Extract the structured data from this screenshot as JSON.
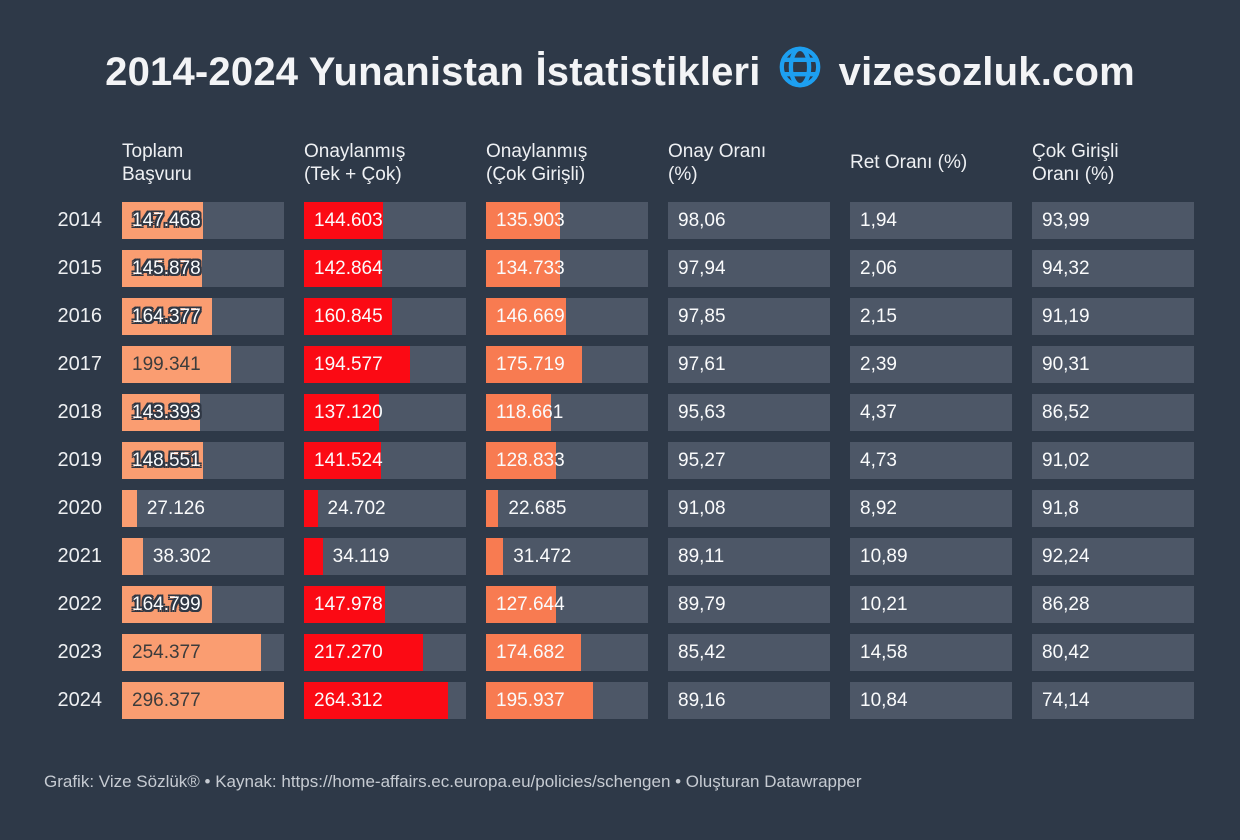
{
  "colors": {
    "background": "#2e3948",
    "cell_gray": "#4d5767",
    "bar_total_orange": "#fa9d71",
    "bar_approved_red": "#fb0a14",
    "bar_multi_coral": "#f87b51",
    "globe_blue": "#1d9ff0",
    "text_white": "#fafbfc",
    "text_dark_on_bar": "#3c3c3c",
    "footer_gray": "#c6cbd2"
  },
  "header": {
    "title_left": "2014-2024 Yunanistan İstatistikleri",
    "title_right": "vizesozluk.com"
  },
  "table": {
    "columns": [
      {
        "label": "Toplam\nBaşvuru"
      },
      {
        "label": "Onaylanmış\n(Tek + Çok)"
      },
      {
        "label": "Onaylanmış\n(Çok Girişli)"
      },
      {
        "label": "Onay Oranı\n(%)"
      },
      {
        "label": "Ret Oranı (%)"
      },
      {
        "label": "Çok Girişli\nOranı (%)"
      }
    ],
    "rows": [
      {
        "year": "2014",
        "total": {
          "text": "147.468",
          "value": 147468
        },
        "approved": {
          "text": "144.603",
          "value": 144603
        },
        "multi": {
          "text": "135.903",
          "value": 135903
        },
        "approval_rate": "98,06",
        "rejection_rate": "1,94",
        "multi_rate": "93,99"
      },
      {
        "year": "2015",
        "total": {
          "text": "145.878",
          "value": 145878
        },
        "approved": {
          "text": "142.864",
          "value": 142864
        },
        "multi": {
          "text": "134.733",
          "value": 134733
        },
        "approval_rate": "97,94",
        "rejection_rate": "2,06",
        "multi_rate": "94,32"
      },
      {
        "year": "2016",
        "total": {
          "text": "164.377",
          "value": 164377
        },
        "approved": {
          "text": "160.845",
          "value": 160845
        },
        "multi": {
          "text": "146.669",
          "value": 146669
        },
        "approval_rate": "97,85",
        "rejection_rate": "2,15",
        "multi_rate": "91,19"
      },
      {
        "year": "2017",
        "total": {
          "text": "199.341",
          "value": 199341
        },
        "approved": {
          "text": "194.577",
          "value": 194577
        },
        "multi": {
          "text": "175.719",
          "value": 175719
        },
        "approval_rate": "97,61",
        "rejection_rate": "2,39",
        "multi_rate": "90,31"
      },
      {
        "year": "2018",
        "total": {
          "text": "143.393",
          "value": 143393
        },
        "approved": {
          "text": "137.120",
          "value": 137120
        },
        "multi": {
          "text": "118.661",
          "value": 118661
        },
        "approval_rate": "95,63",
        "rejection_rate": "4,37",
        "multi_rate": "86,52"
      },
      {
        "year": "2019",
        "total": {
          "text": "148.551",
          "value": 148551
        },
        "approved": {
          "text": "141.524",
          "value": 141524
        },
        "multi": {
          "text": "128.833",
          "value": 128833
        },
        "approval_rate": "95,27",
        "rejection_rate": "4,73",
        "multi_rate": "91,02"
      },
      {
        "year": "2020",
        "total": {
          "text": "27.126",
          "value": 27126
        },
        "approved": {
          "text": "24.702",
          "value": 24702
        },
        "multi": {
          "text": "22.685",
          "value": 22685
        },
        "approval_rate": "91,08",
        "rejection_rate": "8,92",
        "multi_rate": "91,8"
      },
      {
        "year": "2021",
        "total": {
          "text": "38.302",
          "value": 38302
        },
        "approved": {
          "text": "34.119",
          "value": 34119
        },
        "multi": {
          "text": "31.472",
          "value": 31472
        },
        "approval_rate": "89,11",
        "rejection_rate": "10,89",
        "multi_rate": "92,24"
      },
      {
        "year": "2022",
        "total": {
          "text": "164.799",
          "value": 164799
        },
        "approved": {
          "text": "147.978",
          "value": 147978
        },
        "multi": {
          "text": "127.644",
          "value": 127644
        },
        "approval_rate": "89,79",
        "rejection_rate": "10,21",
        "multi_rate": "86,28"
      },
      {
        "year": "2023",
        "total": {
          "text": "254.377",
          "value": 254377
        },
        "approved": {
          "text": "217.270",
          "value": 217270
        },
        "multi": {
          "text": "174.682",
          "value": 174682
        },
        "approval_rate": "85,42",
        "rejection_rate": "14,58",
        "multi_rate": "80,42"
      },
      {
        "year": "2024",
        "total": {
          "text": "296.377",
          "value": 296377
        },
        "approved": {
          "text": "264.312",
          "value": 264312
        },
        "multi": {
          "text": "195.937",
          "value": 195937
        },
        "approval_rate": "89,16",
        "rejection_rate": "10,84",
        "multi_rate": "74,14"
      }
    ]
  },
  "footer": {
    "credit": "Grafik: Vize Sözlük® • Kaynak: https://home-affairs.ec.europa.eu/policies/schengen • Oluşturan Datawrapper"
  },
  "chart_data": {
    "type": "table",
    "title": "2014-2024 Yunanistan İstatistikleri vizesozluk.com",
    "categories": [
      2014,
      2015,
      2016,
      2017,
      2018,
      2019,
      2020,
      2021,
      2022,
      2023,
      2024
    ],
    "series": [
      {
        "name": "Toplam Başvuru",
        "values": [
          147468,
          145878,
          164377,
          199341,
          143393,
          148551,
          27126,
          38302,
          164799,
          254377,
          296377
        ]
      },
      {
        "name": "Onaylanmış (Tek + Çok)",
        "values": [
          144603,
          142864,
          160845,
          194577,
          137120,
          141524,
          24702,
          34119,
          147978,
          217270,
          264312
        ]
      },
      {
        "name": "Onaylanmış (Çok Girişli)",
        "values": [
          135903,
          134733,
          146669,
          175719,
          118661,
          128833,
          22685,
          31472,
          127644,
          174682,
          195937
        ]
      },
      {
        "name": "Onay Oranı (%)",
        "values": [
          98.06,
          97.94,
          97.85,
          97.61,
          95.63,
          95.27,
          91.08,
          89.11,
          89.79,
          85.42,
          89.16
        ]
      },
      {
        "name": "Ret Oranı (%)",
        "values": [
          1.94,
          2.06,
          2.15,
          2.39,
          4.37,
          4.73,
          8.92,
          10.89,
          10.21,
          14.58,
          10.84
        ]
      },
      {
        "name": "Çok Girişli Oranı (%)",
        "values": [
          93.99,
          94.32,
          91.19,
          90.31,
          86.52,
          91.02,
          91.8,
          92.24,
          86.28,
          80.42,
          74.14
        ]
      }
    ],
    "bar_scale_max": 296377,
    "bar_columns": [
      "Toplam Başvuru",
      "Onaylanmış (Tek + Çok)",
      "Onaylanmış (Çok Girişli)"
    ],
    "legend_position": "none",
    "grid": false
  }
}
